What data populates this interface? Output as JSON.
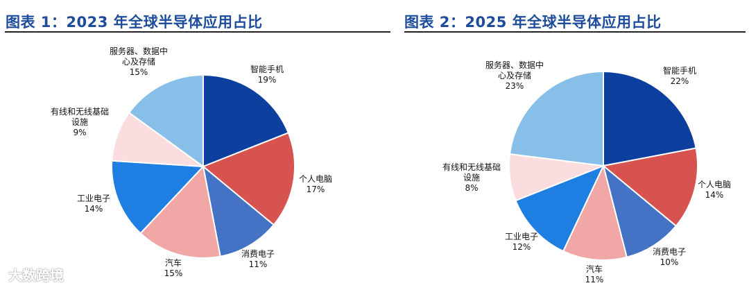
{
  "chart_data": [
    {
      "type": "pie",
      "title": "图表 1：2023 年全球半导体应用占比",
      "slices": [
        {
          "name": "智能手机",
          "label_lines": [
            "智能手机"
          ],
          "value": 19,
          "value_label": "19%",
          "color": "#0d3f9f"
        },
        {
          "name": "个人电脑",
          "label_lines": [
            "个人电脑"
          ],
          "value": 17,
          "value_label": "17%",
          "color": "#d65350"
        },
        {
          "name": "消费电子",
          "label_lines": [
            "消费电子"
          ],
          "value": 11,
          "value_label": "11%",
          "color": "#4472c4"
        },
        {
          "name": "汽车",
          "label_lines": [
            "汽车"
          ],
          "value": 15,
          "value_label": "15%",
          "color": "#f2a7a7"
        },
        {
          "name": "工业电子",
          "label_lines": [
            "工业电子"
          ],
          "value": 14,
          "value_label": "14%",
          "color": "#1f7ee2"
        },
        {
          "name": "有线和无线基础设施",
          "label_lines": [
            "有线和无线基础",
            "设施"
          ],
          "value": 9,
          "value_label": "9%",
          "color": "#fbdde0"
        },
        {
          "name": "服务器、数据中心及存储",
          "label_lines": [
            "服务器、数据中",
            "心及存储"
          ],
          "value": 15,
          "value_label": "15%",
          "color": "#87bfe9"
        }
      ]
    },
    {
      "type": "pie",
      "title": "图表 2：2025 年全球半导体应用占比",
      "slices": [
        {
          "name": "智能手机",
          "label_lines": [
            "智能手机"
          ],
          "value": 22,
          "value_label": "22%",
          "color": "#0d3f9f"
        },
        {
          "name": "个人电脑",
          "label_lines": [
            "个人电脑"
          ],
          "value": 14,
          "value_label": "14%",
          "color": "#d65350"
        },
        {
          "name": "消费电子",
          "label_lines": [
            "消费电子"
          ],
          "value": 10,
          "value_label": "10%",
          "color": "#4472c4"
        },
        {
          "name": "汽车",
          "label_lines": [
            "汽车"
          ],
          "value": 11,
          "value_label": "11%",
          "color": "#f2a7a7"
        },
        {
          "name": "工业电子",
          "label_lines": [
            "工业电子"
          ],
          "value": 12,
          "value_label": "12%",
          "color": "#1f7ee2"
        },
        {
          "name": "有线和无线基础设施",
          "label_lines": [
            "有线和无线基础",
            "设施"
          ],
          "value": 8,
          "value_label": "8%",
          "color": "#fbdde0"
        },
        {
          "name": "服务器、数据中心及存储",
          "label_lines": [
            "服务器、数据中",
            "心及存储"
          ],
          "value": 23,
          "value_label": "23%",
          "color": "#87bfe9"
        }
      ]
    }
  ],
  "watermark": "大数跨境"
}
